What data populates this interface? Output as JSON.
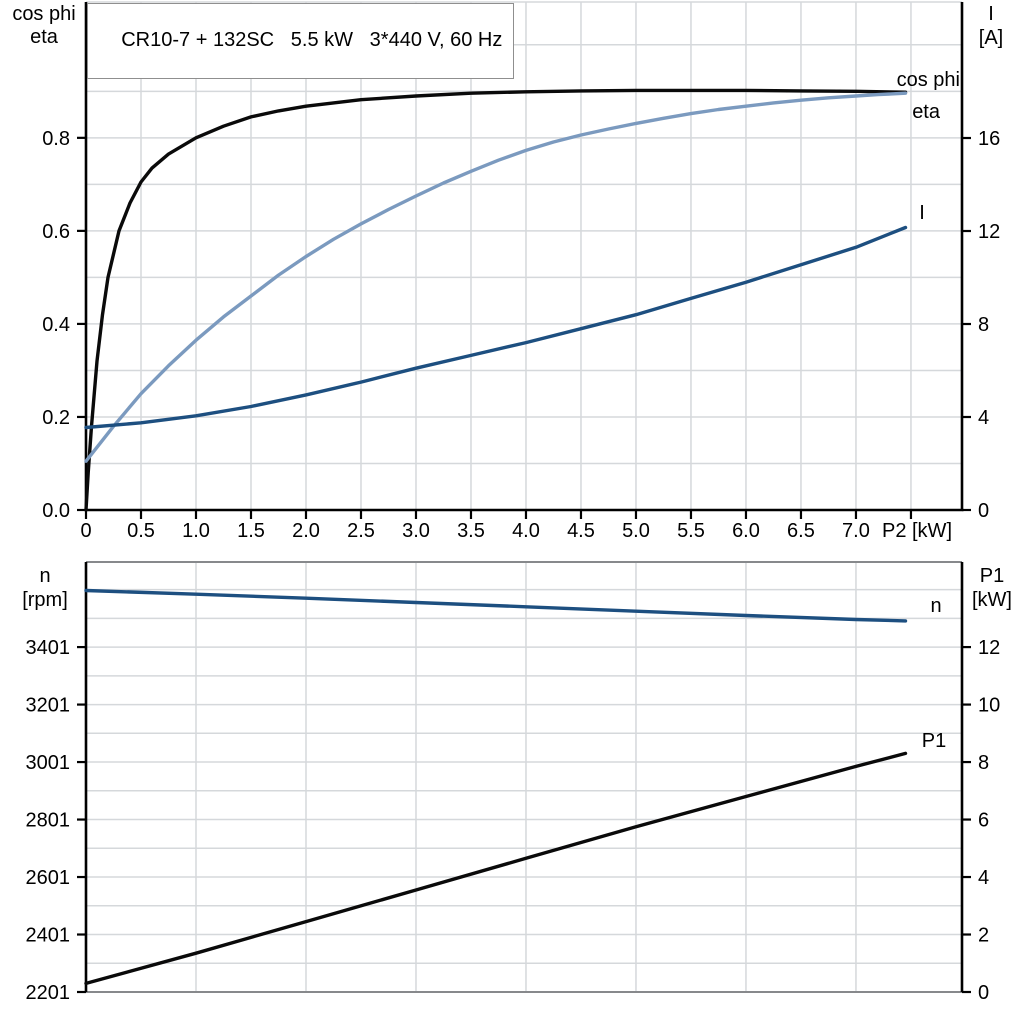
{
  "title": "CR10-7 + 132SC   5.5 kW   3*440 V, 60 Hz",
  "colors": {
    "black": "#0a0a0a",
    "light_blue": "#7b9abf",
    "dark_blue": "#1d4f80",
    "grid": "#d5d8db",
    "frame_gray": "#87898c",
    "axis_black": "#000000"
  },
  "chart_data": [
    {
      "type": "line",
      "title": "CR10-7 + 132SC   5.5 kW   3*440 V, 60 Hz",
      "x_axis": {
        "label": "P2 [kW]",
        "min": 0,
        "max": 7.964,
        "grid_step": 0.5,
        "ticks": [
          0,
          0.5,
          1,
          1.5,
          2,
          2.5,
          3,
          3.5,
          4,
          4.5,
          5,
          5.5,
          6,
          6.5,
          7,
          7.5
        ],
        "tick_labels": [
          "0",
          "0.5",
          "1.0",
          "1.5",
          "2.0",
          "2.5",
          "3.0",
          "3.5",
          "4.0",
          "4.5",
          "5.0",
          "5.5",
          "6.0",
          "6.5",
          "7.0",
          ""
        ]
      },
      "y_left": {
        "header": [
          "cos phi",
          "eta"
        ],
        "min": 0,
        "max": 1.092,
        "grid_step": 0.1,
        "ticks": [
          0,
          0.2,
          0.4,
          0.6,
          0.8
        ],
        "tick_labels": [
          "0.0",
          "0.2",
          "0.4",
          "0.6",
          "0.8"
        ]
      },
      "y_right": {
        "header": [
          "I",
          "[A]"
        ],
        "min": 0,
        "max": 21.85,
        "ticks": [
          0,
          4,
          8,
          12,
          16
        ],
        "tick_labels": [
          "0",
          "4",
          "8",
          "12",
          "16"
        ]
      },
      "series": [
        {
          "name": "eta",
          "axis": "left",
          "color_key": "black",
          "points": [
            [
              0,
              0
            ],
            [
              0.02,
              0.08
            ],
            [
              0.05,
              0.18
            ],
            [
              0.1,
              0.32
            ],
            [
              0.15,
              0.42
            ],
            [
              0.2,
              0.5
            ],
            [
              0.3,
              0.6
            ],
            [
              0.4,
              0.66
            ],
            [
              0.5,
              0.705
            ],
            [
              0.6,
              0.735
            ],
            [
              0.75,
              0.765
            ],
            [
              1.0,
              0.8
            ],
            [
              1.25,
              0.825
            ],
            [
              1.5,
              0.845
            ],
            [
              1.75,
              0.858
            ],
            [
              2.0,
              0.868
            ],
            [
              2.5,
              0.882
            ],
            [
              3.0,
              0.89
            ],
            [
              3.5,
              0.896
            ],
            [
              4.0,
              0.899
            ],
            [
              4.5,
              0.901
            ],
            [
              5.0,
              0.902
            ],
            [
              5.5,
              0.902
            ],
            [
              6.0,
              0.902
            ],
            [
              6.5,
              0.901
            ],
            [
              7.0,
              0.9
            ],
            [
              7.45,
              0.898
            ]
          ]
        },
        {
          "name": "cos phi",
          "axis": "left",
          "color_key": "light_blue",
          "points": [
            [
              0,
              0.105
            ],
            [
              0.25,
              0.18
            ],
            [
              0.5,
              0.25
            ],
            [
              0.75,
              0.31
            ],
            [
              1.0,
              0.365
            ],
            [
              1.25,
              0.415
            ],
            [
              1.5,
              0.46
            ],
            [
              1.75,
              0.505
            ],
            [
              2.0,
              0.545
            ],
            [
              2.25,
              0.582
            ],
            [
              2.5,
              0.615
            ],
            [
              2.75,
              0.646
            ],
            [
              3.0,
              0.675
            ],
            [
              3.25,
              0.703
            ],
            [
              3.5,
              0.728
            ],
            [
              3.75,
              0.752
            ],
            [
              4.0,
              0.773
            ],
            [
              4.25,
              0.791
            ],
            [
              4.5,
              0.806
            ],
            [
              4.75,
              0.819
            ],
            [
              5.0,
              0.831
            ],
            [
              5.25,
              0.842
            ],
            [
              5.5,
              0.852
            ],
            [
              5.75,
              0.861
            ],
            [
              6.0,
              0.868
            ],
            [
              6.25,
              0.875
            ],
            [
              6.5,
              0.881
            ],
            [
              6.75,
              0.886
            ],
            [
              7.0,
              0.89
            ],
            [
              7.2,
              0.893
            ],
            [
              7.45,
              0.896
            ]
          ]
        },
        {
          "name": "I",
          "axis": "right",
          "color_key": "dark_blue",
          "points": [
            [
              0,
              3.55
            ],
            [
              0.5,
              3.75
            ],
            [
              1.0,
              4.05
            ],
            [
              1.5,
              4.45
            ],
            [
              2.0,
              4.95
            ],
            [
              2.5,
              5.5
            ],
            [
              3.0,
              6.1
            ],
            [
              3.5,
              6.65
            ],
            [
              4.0,
              7.2
            ],
            [
              4.5,
              7.8
            ],
            [
              5.0,
              8.4
            ],
            [
              5.5,
              9.1
            ],
            [
              6.0,
              9.8
            ],
            [
              6.5,
              10.55
            ],
            [
              7.0,
              11.3
            ],
            [
              7.45,
              12.15
            ]
          ]
        }
      ]
    },
    {
      "type": "line",
      "x_axis": {
        "label": "",
        "min": 0,
        "max": 7.964,
        "grid_step": 1.0,
        "ticks": [],
        "tick_labels": []
      },
      "y_left": {
        "header": [
          "n",
          "[rpm]"
        ],
        "min": 2201,
        "max": 3697,
        "grid_step": 100,
        "ticks": [
          2201,
          2401,
          2601,
          2801,
          3001,
          3201,
          3401
        ],
        "tick_labels": [
          "2201",
          "2401",
          "2601",
          "2801",
          "3001",
          "3201",
          "3401"
        ]
      },
      "y_right": {
        "header": [
          "P1",
          "[kW]"
        ],
        "min": 0,
        "max": 14.96,
        "ticks": [
          0,
          2,
          4,
          6,
          8,
          10,
          12
        ],
        "tick_labels": [
          "0",
          "2",
          "4",
          "6",
          "8",
          "10",
          "12"
        ]
      },
      "series": [
        {
          "name": "n",
          "axis": "left",
          "color_key": "dark_blue",
          "points": [
            [
              0,
              3598
            ],
            [
              1.0,
              3585
            ],
            [
              2.0,
              3571
            ],
            [
              3.0,
              3556
            ],
            [
              4.0,
              3541
            ],
            [
              5.0,
              3526
            ],
            [
              6.0,
              3511
            ],
            [
              7.0,
              3497
            ],
            [
              7.45,
              3492
            ]
          ]
        },
        {
          "name": "P1",
          "axis": "right",
          "color_key": "black",
          "points": [
            [
              0,
              0.3
            ],
            [
              1.0,
              1.35
            ],
            [
              2.0,
              2.45
            ],
            [
              3.0,
              3.55
            ],
            [
              4.0,
              4.65
            ],
            [
              5.0,
              5.75
            ],
            [
              6.0,
              6.8
            ],
            [
              7.0,
              7.85
            ],
            [
              7.45,
              8.3
            ]
          ]
        }
      ]
    }
  ]
}
